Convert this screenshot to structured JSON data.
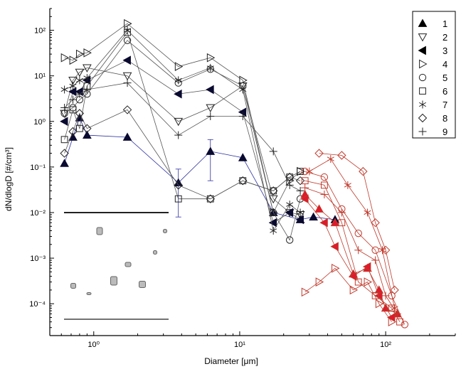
{
  "chart_data": {
    "type": "scatter",
    "xlabel": "Diameter [μm]",
    "ylabel": "dN/dlogD [#/cm³]",
    "xscale": "log",
    "yscale": "log",
    "xlim": [
      0.5,
      300
    ],
    "ylim": [
      2e-05,
      300
    ],
    "grid": false,
    "legend": "top-right",
    "x_ticks": [
      {
        "value": 1,
        "label": "10⁰"
      },
      {
        "value": 10,
        "label": "10¹"
      },
      {
        "value": 100,
        "label": "10²"
      }
    ],
    "y_ticks": [
      {
        "value": 0.0001,
        "label": "10⁻⁴"
      },
      {
        "value": 0.001,
        "label": "10⁻³"
      },
      {
        "value": 0.01,
        "label": "10⁻²"
      },
      {
        "value": 0.1,
        "label": "10⁻¹"
      },
      {
        "value": 1,
        "label": "10⁰"
      },
      {
        "value": 10,
        "label": "10¹"
      },
      {
        "value": 100,
        "label": "10²"
      }
    ],
    "series": [
      {
        "name": "1",
        "marker": "triangle-up-filled",
        "color": "#1a1f8c",
        "x": [
          0.63,
          0.72,
          0.8,
          0.9,
          1.7,
          3.8,
          6.3,
          10.5,
          17,
          26,
          32,
          45
        ],
        "y": [
          0.12,
          0.45,
          1.2,
          0.5,
          0.45,
          0.045,
          0.22,
          0.16,
          0.01,
          0.007,
          0.008,
          0.007
        ],
        "err": [
          [
            3.8,
            0.008,
            0.09
          ],
          [
            6.3,
            0.05,
            0.4
          ]
        ]
      },
      {
        "name": "2",
        "marker": "triangle-down-open",
        "color": "#333333",
        "x": [
          0.63,
          0.72,
          0.8,
          0.9,
          1.7,
          3.8,
          6.3,
          10.5,
          17,
          22,
          26
        ],
        "y": [
          1.5,
          8,
          12,
          15,
          10,
          1,
          2,
          6,
          0.02,
          0.01,
          0.009
        ]
      },
      {
        "name": "3",
        "marker": "triangle-left-filled",
        "color": "#000000",
        "x": [
          0.63,
          0.72,
          0.8,
          0.9,
          1.7,
          3.8,
          6.3,
          10.5,
          17,
          22,
          26
        ],
        "y": [
          1,
          4.5,
          4.5,
          8,
          22,
          4,
          5,
          1.6,
          0.006,
          0.01,
          0.007
        ]
      },
      {
        "name": "4",
        "marker": "triangle-right-open",
        "color": "#333333",
        "x": [
          0.63,
          0.72,
          0.8,
          0.9,
          1.7,
          3.8,
          6.3,
          10.5,
          17,
          22,
          26
        ],
        "y": [
          25,
          22,
          30,
          32,
          140,
          16,
          25,
          8,
          0.01,
          0.05,
          0.08
        ]
      },
      {
        "name": "5",
        "marker": "circle-open",
        "color": "#333333",
        "x": [
          0.63,
          0.72,
          0.8,
          0.9,
          1.7,
          3.8,
          6.3,
          10.5,
          17,
          22,
          26
        ],
        "y": [
          1.5,
          2,
          3,
          4,
          60,
          7,
          14,
          6,
          0.01,
          0.0025,
          0.02
        ]
      },
      {
        "name": "6",
        "marker": "square-open",
        "color": "#333333",
        "x": [
          0.63,
          0.72,
          0.8,
          0.9,
          1.7,
          3.8,
          6.3,
          10.5,
          17,
          22,
          26
        ],
        "y": [
          0.4,
          1.8,
          0.7,
          6,
          90,
          0.02,
          0.02,
          0.05,
          0.03,
          0.06,
          0.08
        ]
      },
      {
        "name": "7",
        "marker": "star",
        "color": "#333333",
        "x": [
          0.63,
          0.72,
          0.8,
          0.9,
          1.7,
          3.8,
          6.3,
          10.5,
          17,
          22,
          26
        ],
        "y": [
          5,
          6,
          8,
          9,
          100,
          8,
          15,
          5,
          0.004,
          0.015,
          0.01
        ]
      },
      {
        "name": "8",
        "marker": "diamond-open",
        "color": "#333333",
        "x": [
          0.63,
          0.72,
          0.8,
          0.9,
          1.7,
          3.8,
          6.3,
          10.5,
          17,
          22,
          26
        ],
        "y": [
          0.2,
          0.6,
          1.5,
          0.7,
          1.8,
          0.04,
          0.02,
          0.05,
          0.03,
          0.06,
          0.05
        ]
      },
      {
        "name": "9",
        "marker": "plus",
        "color": "#333333",
        "x": [
          0.63,
          0.72,
          0.8,
          0.9,
          1.7,
          3.8,
          6.3,
          10.5,
          17,
          22,
          26
        ],
        "y": [
          2,
          3,
          4,
          5,
          7,
          0.5,
          1.3,
          1.3,
          0.22,
          0.04,
          0.03
        ]
      }
    ],
    "red_series": [
      {
        "marker": "triangle-up-filled",
        "x": [
          28,
          35,
          45,
          60,
          75,
          90,
          100,
          120
        ],
        "y": [
          0.025,
          0.012,
          0.006,
          0.00045,
          0.0006,
          0.0002,
          8e-05,
          6e-05
        ]
      },
      {
        "marker": "triangle-left-filled",
        "x": [
          28,
          38,
          45,
          60,
          75,
          90,
          110
        ],
        "y": [
          0.02,
          0.006,
          0.0018,
          0.0004,
          0.00065,
          0.00015,
          5e-05
        ]
      },
      {
        "marker": "triangle-right-open",
        "x": [
          28,
          35,
          45,
          60,
          75,
          90,
          110
        ],
        "y": [
          0.00018,
          0.0003,
          0.0006,
          0.0002,
          0.0003,
          0.0001,
          4e-05
        ]
      },
      {
        "marker": "circle-open",
        "x": [
          28,
          38,
          50,
          65,
          85,
          110,
          135
        ],
        "y": [
          0.08,
          0.06,
          0.012,
          0.0035,
          0.0015,
          0.00015,
          3.5e-05
        ]
      },
      {
        "marker": "square-open",
        "x": [
          28,
          38,
          50,
          65,
          85,
          110,
          125
        ],
        "y": [
          0.05,
          0.04,
          0.006,
          0.0003,
          0.00015,
          8e-05,
          4e-05
        ]
      },
      {
        "marker": "star",
        "x": [
          30,
          42,
          55,
          75,
          95,
          115
        ],
        "y": [
          0.08,
          0.15,
          0.04,
          0.01,
          0.0015,
          8e-05
        ]
      },
      {
        "marker": "diamond-open",
        "x": [
          35,
          50,
          70,
          85,
          100,
          115
        ],
        "y": [
          0.2,
          0.18,
          0.08,
          0.006,
          0.0015,
          0.0002
        ]
      },
      {
        "marker": "plus",
        "x": [
          28,
          38,
          50,
          65,
          85,
          100,
          120
        ],
        "y": [
          0.035,
          0.025,
          0.01,
          0.0015,
          0.0009,
          0.00015,
          6e-05
        ]
      }
    ]
  }
}
